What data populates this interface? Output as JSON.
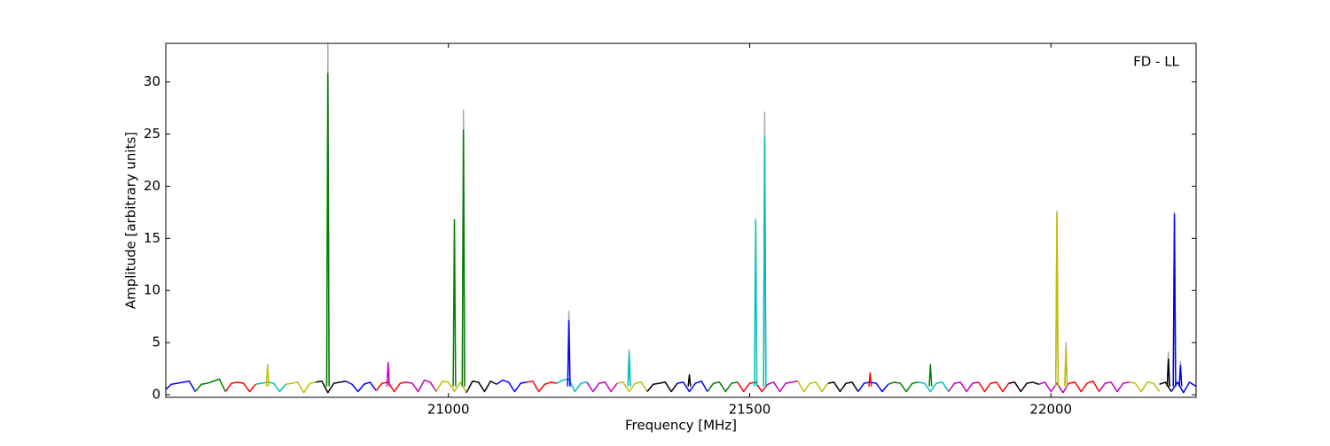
{
  "chart_data": {
    "type": "line",
    "annotation": "FD - LL",
    "x_label": "Frequency [MHz]",
    "y_label": "Amplitude [arbitrary units]",
    "xlim": [
      20531,
      22241
    ],
    "ylim": [
      -0.25,
      33.7
    ],
    "xticks": [
      21000,
      21500,
      22000
    ],
    "yticks": [
      0,
      5,
      10,
      15,
      20,
      25,
      30
    ],
    "series": [
      {
        "color": "#aaaaaa",
        "x": [
          20798,
          20800,
          20802
        ],
        "values": [
          0.8,
          33.7,
          0.8
        ]
      },
      {
        "color": "#aaaaaa",
        "x": [
          21023,
          21025,
          21027
        ],
        "values": [
          0.8,
          27.3,
          0.8
        ]
      },
      {
        "color": "#aaaaaa",
        "x": [
          21198,
          21200,
          21202
        ],
        "values": [
          0.8,
          8.0,
          0.8
        ]
      },
      {
        "color": "#aaaaaa",
        "x": [
          21298,
          21300,
          21302
        ],
        "values": [
          0.8,
          4.3,
          0.8
        ]
      },
      {
        "color": "#aaaaaa",
        "x": [
          21523,
          21525,
          21527
        ],
        "values": [
          0.8,
          27.1,
          0.8
        ]
      },
      {
        "color": "#aaaaaa",
        "x": [
          22008,
          22010,
          22012
        ],
        "values": [
          0.8,
          17.6,
          0.8
        ]
      },
      {
        "color": "#aaaaaa",
        "x": [
          22023,
          22025,
          22027
        ],
        "values": [
          0.8,
          5.0,
          0.8
        ]
      },
      {
        "color": "#aaaaaa",
        "x": [
          22193,
          22195,
          22197
        ],
        "values": [
          0.8,
          4.1,
          0.8
        ]
      },
      {
        "color": "#aaaaaa",
        "x": [
          22203,
          22205,
          22207
        ],
        "values": [
          0.8,
          17.5,
          0.8
        ]
      },
      {
        "color": "#aaaaaa",
        "x": [
          22213,
          22215,
          22217
        ],
        "values": [
          0.8,
          3.2,
          0.8
        ]
      },
      {
        "color": "#0000ff",
        "x": [
          20531,
          20540,
          20550,
          20560,
          20570,
          20580
        ],
        "values": [
          0.5,
          1.0,
          1.1,
          1.2,
          1.3,
          0.3
        ]
      },
      {
        "color": "#008000",
        "x": [
          20580,
          20590,
          20600,
          20610,
          20620,
          20630
        ],
        "values": [
          0.3,
          1.0,
          1.1,
          1.3,
          1.5,
          0.3
        ]
      },
      {
        "color": "#ff0000",
        "x": [
          20630,
          20640,
          20650,
          20660,
          20670,
          20680
        ],
        "values": [
          0.3,
          1.1,
          1.2,
          1.1,
          0.3,
          1.0
        ]
      },
      {
        "color": "#00bfbf",
        "x": [
          20680,
          20690,
          20700,
          20710,
          20720,
          20730
        ],
        "values": [
          1.0,
          1.1,
          1.2,
          1.1,
          0.3,
          1.0
        ]
      },
      {
        "color": "#bfbf00",
        "x": [
          20730,
          20740,
          20750,
          20760,
          20770,
          20780
        ],
        "values": [
          1.0,
          1.1,
          1.2,
          0.2,
          1.1,
          1.2
        ]
      },
      {
        "color": "#000000",
        "x": [
          20780,
          20790,
          20800,
          20810,
          20820,
          20830
        ],
        "values": [
          1.2,
          1.3,
          0.2,
          1.1,
          1.2,
          1.3
        ]
      },
      {
        "color": "#0000ff",
        "x": [
          20830,
          20840,
          20850,
          20860,
          20870,
          20880
        ],
        "values": [
          1.3,
          1.0,
          0.3,
          1.0,
          1.2,
          0.4
        ]
      },
      {
        "color": "#ff0000",
        "x": [
          20880,
          20890,
          20900,
          20910,
          20920,
          20930
        ],
        "values": [
          0.4,
          1.1,
          1.2,
          0.3,
          1.1,
          1.2
        ]
      },
      {
        "color": "#bf00bf",
        "x": [
          20930,
          20940,
          20950,
          20960,
          20970,
          20980
        ],
        "values": [
          1.2,
          1.1,
          0.3,
          1.4,
          1.2,
          0.3
        ]
      },
      {
        "color": "#bfbf00",
        "x": [
          20980,
          20990,
          21000,
          21010,
          21020,
          21030
        ],
        "values": [
          0.3,
          1.3,
          1.2,
          0.3,
          1.2,
          0.2
        ]
      },
      {
        "color": "#000000",
        "x": [
          21030,
          21040,
          21050,
          21060,
          21070,
          21080
        ],
        "values": [
          0.2,
          1.3,
          1.2,
          0.3,
          1.3,
          1.0
        ]
      },
      {
        "color": "#0000ff",
        "x": [
          21080,
          21090,
          21100,
          21110,
          21120,
          21130
        ],
        "values": [
          1.0,
          1.4,
          1.2,
          0.3,
          1.1,
          1.2
        ]
      },
      {
        "color": "#ff0000",
        "x": [
          21130,
          21140,
          21150,
          21160,
          21170,
          21180
        ],
        "values": [
          1.2,
          1.3,
          0.3,
          1.0,
          1.2,
          1.1
        ]
      },
      {
        "color": "#00bfbf",
        "x": [
          21180,
          21190,
          21200,
          21210,
          21220,
          21230
        ],
        "values": [
          1.1,
          1.4,
          1.5,
          0.3,
          1.1,
          1.2
        ]
      },
      {
        "color": "#bf00bf",
        "x": [
          21230,
          21240,
          21250,
          21260,
          21270,
          21280
        ],
        "values": [
          1.2,
          0.3,
          1.1,
          1.2,
          0.3,
          1.1
        ]
      },
      {
        "color": "#bfbf00",
        "x": [
          21280,
          21290,
          21300,
          21310,
          21320,
          21330
        ],
        "values": [
          1.1,
          1.2,
          0.3,
          1.1,
          1.2,
          0.3
        ]
      },
      {
        "color": "#000000",
        "x": [
          21330,
          21340,
          21350,
          21360,
          21370,
          21380
        ],
        "values": [
          0.3,
          1.0,
          1.1,
          1.2,
          0.3,
          1.1
        ]
      },
      {
        "color": "#0000ff",
        "x": [
          21380,
          21390,
          21400,
          21410,
          21420,
          21430
        ],
        "values": [
          1.1,
          1.2,
          0.3,
          1.1,
          1.3,
          0.3
        ]
      },
      {
        "color": "#008000",
        "x": [
          21430,
          21440,
          21450,
          21460,
          21470,
          21480
        ],
        "values": [
          0.3,
          1.1,
          1.2,
          0.3,
          1.1,
          1.2
        ]
      },
      {
        "color": "#ff0000",
        "x": [
          21480,
          21490,
          21500,
          21510,
          21520,
          21530
        ],
        "values": [
          1.2,
          0.3,
          1.1,
          1.2,
          0.3,
          1.0
        ]
      },
      {
        "color": "#bf00bf",
        "x": [
          21530,
          21540,
          21550,
          21560,
          21570,
          21580
        ],
        "values": [
          1.0,
          1.2,
          0.3,
          1.1,
          1.2,
          1.3
        ]
      },
      {
        "color": "#bfbf00",
        "x": [
          21580,
          21590,
          21600,
          21610,
          21620,
          21630
        ],
        "values": [
          1.3,
          0.3,
          1.1,
          1.2,
          0.3,
          1.1
        ]
      },
      {
        "color": "#000000",
        "x": [
          21630,
          21640,
          21650,
          21660,
          21670,
          21680
        ],
        "values": [
          1.1,
          1.2,
          0.3,
          1.1,
          1.2,
          0.3
        ]
      },
      {
        "color": "#0000ff",
        "x": [
          21680,
          21690,
          21700,
          21710,
          21720,
          21730
        ],
        "values": [
          0.3,
          1.1,
          1.2,
          1.1,
          0.3,
          1.0
        ]
      },
      {
        "color": "#008000",
        "x": [
          21730,
          21740,
          21750,
          21760,
          21770,
          21780
        ],
        "values": [
          1.0,
          1.2,
          1.1,
          0.3,
          1.1,
          1.2
        ]
      },
      {
        "color": "#00bfbf",
        "x": [
          21780,
          21790,
          21800,
          21810,
          21820,
          21830
        ],
        "values": [
          1.2,
          1.1,
          0.3,
          1.1,
          1.2,
          0.3
        ]
      },
      {
        "color": "#bf00bf",
        "x": [
          21830,
          21840,
          21850,
          21860,
          21870,
          21880
        ],
        "values": [
          0.3,
          1.1,
          1.2,
          0.3,
          1.1,
          1.2
        ]
      },
      {
        "color": "#ff0000",
        "x": [
          21880,
          21890,
          21900,
          21910,
          21920,
          21930
        ],
        "values": [
          1.2,
          0.3,
          1.1,
          1.2,
          0.3,
          1.1
        ]
      },
      {
        "color": "#000000",
        "x": [
          21930,
          21940,
          21950,
          21960,
          21970,
          21980
        ],
        "values": [
          1.1,
          1.2,
          0.3,
          1.1,
          1.2,
          1.0
        ]
      },
      {
        "color": "#bf00bf",
        "x": [
          21980,
          21990,
          22000,
          22010,
          22020,
          22030
        ],
        "values": [
          1.0,
          1.2,
          0.3,
          1.1,
          0.2,
          1.1
        ]
      },
      {
        "color": "#ff0000",
        "x": [
          22030,
          22040,
          22050,
          22060,
          22070,
          22080
        ],
        "values": [
          1.1,
          1.2,
          0.3,
          1.1,
          1.3,
          0.3
        ]
      },
      {
        "color": "#bf00bf",
        "x": [
          22080,
          22090,
          22100,
          22110,
          22120,
          22130
        ],
        "values": [
          0.3,
          1.1,
          1.2,
          0.3,
          1.1,
          1.2
        ]
      },
      {
        "color": "#bfbf00",
        "x": [
          22130,
          22140,
          22150,
          22160,
          22170,
          22180
        ],
        "values": [
          1.2,
          1.1,
          0.3,
          1.2,
          1.1,
          0.3
        ]
      },
      {
        "color": "#000000",
        "x": [
          22180,
          22190,
          22200
        ],
        "values": [
          1.0,
          1.2,
          0.3
        ]
      },
      {
        "color": "#0000ff",
        "x": [
          22200,
          22210,
          22220,
          22230,
          22241
        ],
        "values": [
          0.3,
          1.2,
          0.2,
          1.2,
          0.8
        ]
      },
      {
        "color": "#bfbf00",
        "x": [
          20698,
          20700,
          20702
        ],
        "values": [
          0.8,
          2.9,
          0.8
        ]
      },
      {
        "color": "#008000",
        "x": [
          20798,
          20800,
          20802
        ],
        "values": [
          0.8,
          30.8,
          0.8
        ]
      },
      {
        "color": "#bf00bf",
        "x": [
          20898,
          20900,
          20902
        ],
        "values": [
          0.8,
          3.1,
          0.8
        ]
      },
      {
        "color": "#008000",
        "x": [
          21008,
          21010,
          21012
        ],
        "values": [
          0.8,
          16.8,
          0.8
        ]
      },
      {
        "color": "#008000",
        "x": [
          21023,
          21025,
          21027
        ],
        "values": [
          0.8,
          25.4,
          0.8
        ]
      },
      {
        "color": "#0000ff",
        "x": [
          21198,
          21200,
          21202
        ],
        "values": [
          0.8,
          7.1,
          0.8
        ]
      },
      {
        "color": "#00bfbf",
        "x": [
          21298,
          21300,
          21302
        ],
        "values": [
          0.8,
          4.0,
          0.8
        ]
      },
      {
        "color": "#000000",
        "x": [
          21398,
          21400,
          21402
        ],
        "values": [
          0.8,
          1.9,
          0.8
        ]
      },
      {
        "color": "#00bfbf",
        "x": [
          21508,
          21510,
          21512
        ],
        "values": [
          0.8,
          16.8,
          0.8
        ]
      },
      {
        "color": "#00bfbf",
        "x": [
          21523,
          21525,
          21527
        ],
        "values": [
          0.8,
          24.7,
          0.8
        ]
      },
      {
        "color": "#ff0000",
        "x": [
          21698,
          21700,
          21702
        ],
        "values": [
          0.8,
          2.1,
          0.8
        ]
      },
      {
        "color": "#008000",
        "x": [
          21798,
          21800,
          21802
        ],
        "values": [
          0.8,
          2.9,
          0.8
        ]
      },
      {
        "color": "#bfbf00",
        "x": [
          22008,
          22010,
          22012
        ],
        "values": [
          0.8,
          17.4,
          0.8
        ]
      },
      {
        "color": "#bfbf00",
        "x": [
          22023,
          22025,
          22027
        ],
        "values": [
          0.8,
          4.3,
          0.8
        ]
      },
      {
        "color": "#000000",
        "x": [
          22193,
          22195,
          22197
        ],
        "values": [
          0.8,
          3.4,
          0.8
        ]
      },
      {
        "color": "#0000ff",
        "x": [
          22203,
          22205,
          22207
        ],
        "values": [
          0.8,
          17.3,
          0.8
        ]
      },
      {
        "color": "#0000ff",
        "x": [
          22213,
          22215,
          22217
        ],
        "values": [
          0.8,
          2.8,
          0.8
        ]
      }
    ]
  }
}
